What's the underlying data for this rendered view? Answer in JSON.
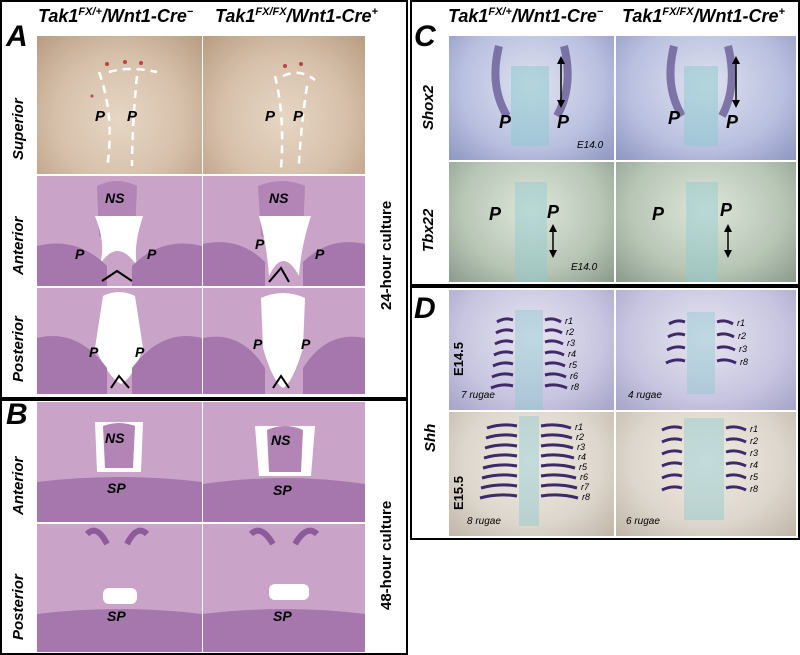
{
  "panels": {
    "A": "A",
    "B": "B",
    "C": "C",
    "D": "D"
  },
  "headers": {
    "left_ctrl_prefix": "Tak1",
    "left_ctrl_sup": "FX/+",
    "left_ctrl_suffix": "/Wnt1-Cre",
    "left_ctrl_sign": "−",
    "left_mut_prefix": "Tak1",
    "left_mut_sup": "FX/FX",
    "left_mut_suffix": "/Wnt1-Cre",
    "left_mut_sign": "+",
    "right_ctrl_prefix": "Tak1",
    "right_ctrl_sup": "FX/+",
    "right_ctrl_suffix": "/Wnt1-Cre",
    "right_ctrl_sign": "−",
    "right_mut_prefix": "Tak1",
    "right_mut_sup": "FX/FX",
    "right_mut_suffix": "/Wnt1-Cre",
    "right_mut_sign": "+"
  },
  "row_labels": {
    "superior": "Superior",
    "anterior_a": "Anterior",
    "posterior_a": "Posterior",
    "anterior_b": "Anterior",
    "posterior_b": "Posterior",
    "shox2": "Shox2",
    "tbx22": "Tbx22",
    "shh": "Shh",
    "e145": "E14.5",
    "e155": "E15.5"
  },
  "culture_labels": {
    "h24": "24-hour culture",
    "h48": "48-hour culture"
  },
  "tissue_labels": {
    "P": "P",
    "NS": "NS",
    "SP": "SP"
  },
  "stage_labels": {
    "e140_shox2": "E14.0",
    "e140_tbx22": "E14.0"
  },
  "rugae_counts": {
    "ctrl_e145": "7 rugae",
    "mut_e145": "4 rugae",
    "ctrl_e155": "8 rugae",
    "mut_e155": "6 rugae"
  },
  "rugae_labels": {
    "ctrl_e145": [
      "r1",
      "r2",
      "r3",
      "r4",
      "r5",
      "r6",
      "r8"
    ],
    "mut_e145": [
      "r1",
      "r2",
      "r3",
      "r8"
    ],
    "ctrl_e155": [
      "r1",
      "r2",
      "r3",
      "r4",
      "r5",
      "r6",
      "r7",
      "r8"
    ],
    "mut_e155": [
      "r1",
      "r2",
      "r3",
      "r4",
      "r5",
      "r8"
    ]
  },
  "colors": {
    "frame": "#000000",
    "whole_mount_bg": "#d9c9b8",
    "histology": "#c9a4c8",
    "histology_dark": "#8e5a9a",
    "stain_blue": "#b9c0e0",
    "stain_purple": "#5b4b8a",
    "stain_teal": "#8fcad0"
  }
}
